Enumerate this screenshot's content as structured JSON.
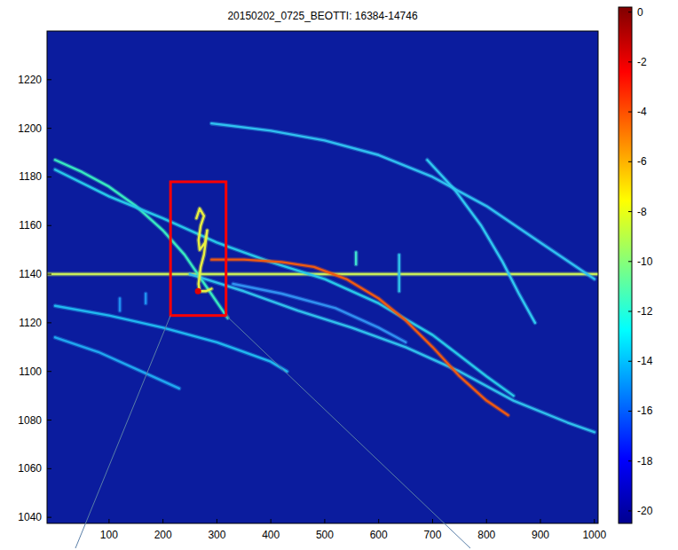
{
  "chart_data": {
    "type": "spectrogram",
    "title": "20150202_0725_BEOTTI: 16384-14746",
    "xlim": [
      -15,
      1007
    ],
    "xticks": [
      100,
      200,
      300,
      400,
      500,
      600,
      700,
      800,
      900,
      1000
    ],
    "ylim": [
      1037.5,
      1240
    ],
    "yticks": [
      1040,
      1060,
      1080,
      1100,
      1120,
      1140,
      1160,
      1180,
      1200,
      1220
    ],
    "colorbar": {
      "lim": [
        -20.5,
        0.2
      ],
      "ticks": [
        0,
        -2,
        -4,
        -6,
        -8,
        -10,
        -12,
        -14,
        -16,
        -18,
        -20
      ]
    },
    "series": [
      {
        "color": "#c8ee5a",
        "x": [
          -15,
          1007
        ],
        "values": [
          1140,
          1140
        ]
      },
      {
        "color": "#38e8c0",
        "x": [
          0,
          50,
          100,
          150,
          200,
          240,
          280,
          320
        ],
        "values": [
          1187,
          1182,
          1176,
          1168,
          1158,
          1148,
          1135,
          1122
        ]
      },
      {
        "color": "#28c8e8",
        "x": [
          0,
          100,
          200,
          300,
          400,
          500,
          600,
          700,
          800,
          850
        ],
        "values": [
          1183,
          1172,
          1163,
          1153,
          1145,
          1138,
          1128,
          1115,
          1098,
          1090
        ]
      },
      {
        "color": "#30c0ec",
        "x": [
          250,
          350,
          450,
          550,
          650,
          750,
          850,
          950,
          1000
        ],
        "values": [
          1140,
          1133,
          1125,
          1118,
          1110,
          1100,
          1088,
          1079,
          1075
        ]
      },
      {
        "color": "#f05a10",
        "x": [
          290,
          350,
          420,
          480,
          540,
          600,
          650,
          700,
          750,
          800,
          840
        ],
        "values": [
          1146,
          1146,
          1145,
          1143,
          1138,
          1130,
          1121,
          1110,
          1098,
          1088,
          1082
        ]
      },
      {
        "color": "#20b8f0",
        "x": [
          0,
          100,
          200,
          300,
          400,
          430
        ],
        "values": [
          1127,
          1123,
          1118,
          1112,
          1104,
          1100
        ]
      },
      {
        "color": "#20a8f0",
        "x": [
          0,
          80,
          160,
          230
        ],
        "values": [
          1114,
          1108,
          1100,
          1093
        ]
      },
      {
        "color": "#30c0f0",
        "x": [
          290,
          400,
          500,
          600,
          700,
          800,
          900,
          1000
        ],
        "values": [
          1202,
          1199,
          1195,
          1189,
          1180,
          1168,
          1153,
          1138
        ]
      },
      {
        "color": "#30c8f0",
        "x": [
          690,
          740,
          790,
          830,
          860,
          890
        ],
        "values": [
          1187,
          1175,
          1160,
          1145,
          1132,
          1120
        ]
      },
      {
        "color": "#3090f0",
        "x": [
          330,
          420,
          520,
          600,
          650
        ],
        "values": [
          1136,
          1132,
          1126,
          1118,
          1112
        ]
      },
      {
        "color": "#40e0d0",
        "x": [
          558,
          558
        ],
        "values": [
          1144,
          1149
        ]
      },
      {
        "color": "#30c0e8",
        "x": [
          638,
          638
        ],
        "values": [
          1133,
          1148
        ]
      },
      {
        "color": "#2090f0",
        "x": [
          120,
          120
        ],
        "values": [
          1125,
          1130
        ]
      },
      {
        "color": "#2090f0",
        "x": [
          168,
          168
        ],
        "values": [
          1128,
          1132
        ]
      },
      {
        "color": "#e8f040",
        "x": [
          262,
          268,
          276,
          270,
          266,
          268,
          278,
          282,
          276,
          270,
          266,
          268,
          280,
          290
        ],
        "values": [
          1163,
          1167,
          1164,
          1160,
          1154,
          1150,
          1153,
          1158,
          1148,
          1143,
          1136,
          1133,
          1133,
          1134
        ]
      },
      {
        "type": "scatter",
        "marker": "circle",
        "color": "#e00000",
        "x": [
          265
        ],
        "values": [
          1133
        ]
      }
    ],
    "annotations": [
      {
        "shape": "rect",
        "x": [
          214,
          317
        ],
        "y": [
          1123,
          1178
        ],
        "color": "#ff0000"
      }
    ]
  }
}
